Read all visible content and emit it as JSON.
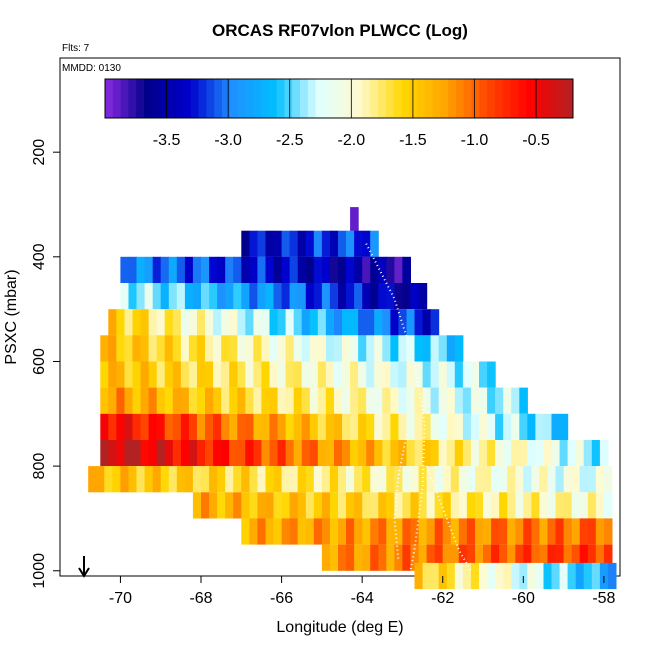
{
  "chart_data": {
    "type": "heatmap",
    "title": "ORCAS RF07vlon PLWCC (Log)",
    "subtitle_flts": "Flts: 7",
    "subtitle_mmdd": "MMDD: 0130",
    "xlabel": "Longitude (deg E)",
    "ylabel": "PSXC (mbar)",
    "xlim": [
      -71.5,
      -57.6
    ],
    "ylim": [
      1010,
      20
    ],
    "y_reversed": true,
    "x_ticks": [
      -70,
      -68,
      -66,
      -64,
      -62,
      -60,
      -58
    ],
    "x_tick_labels": [
      "-70",
      "-68",
      "-66",
      "-64",
      "-62",
      "-60",
      "-58"
    ],
    "y_ticks": [
      200,
      400,
      600,
      800,
      1000
    ],
    "y_tick_labels": [
      "200",
      "400",
      "600",
      "800",
      "1000"
    ],
    "colorbar": {
      "range": [
        -4.0,
        -0.2
      ],
      "ticks": [
        -3.5,
        -3.0,
        -2.5,
        -2.0,
        -1.5,
        -1.0,
        -0.5
      ],
      "tick_labels": [
        "-3.5",
        "-3.0",
        "-2.5",
        "-2.0",
        "-1.5",
        "-1.0",
        "-0.5"
      ],
      "colors": [
        "#8a2be2",
        "#00008b",
        "#0000cd",
        "#1e90ff",
        "#00bfff",
        "#e0ffff",
        "#fffacd",
        "#ffd700",
        "#ffa500",
        "#ff4500",
        "#ff0000",
        "#b22222"
      ]
    },
    "rows": [
      {
        "p": 330,
        "x0": -64.3,
        "x1": -64.05,
        "v0": -3.9,
        "v1": -3.9
      },
      {
        "p": 375,
        "x0": -67.0,
        "x1": -63.6,
        "v0": -3.4,
        "v1": -3.1
      },
      {
        "p": 425,
        "x0": -70.0,
        "x1": -62.7,
        "v0": -2.9,
        "v1": -3.7
      },
      {
        "p": 475,
        "x0": -70.0,
        "x1": -62.4,
        "v0": -2.3,
        "v1": -3.6
      },
      {
        "p": 525,
        "x0": -70.3,
        "x1": -62.0,
        "v0": -1.5,
        "v1": -3.3
      },
      {
        "p": 575,
        "x0": -70.5,
        "x1": -61.5,
        "v0": -1.4,
        "v1": -2.6
      },
      {
        "p": 625,
        "x0": -70.5,
        "x1": -60.8,
        "v0": -1.4,
        "v1": -2.4
      },
      {
        "p": 675,
        "x0": -70.5,
        "x1": -60.0,
        "v0": -1.2,
        "v1": -2.4
      },
      {
        "p": 725,
        "x0": -70.5,
        "x1": -59.0,
        "v0": -0.5,
        "v1": -2.6
      },
      {
        "p": 775,
        "x0": -70.5,
        "x1": -58.0,
        "v0": -0.2,
        "v1": -2.4
      },
      {
        "p": 825,
        "x0": -70.8,
        "x1": -57.8,
        "v0": -1.4,
        "v1": -2.2
      },
      {
        "p": 875,
        "x0": -68.2,
        "x1": -57.8,
        "v0": -1.3,
        "v1": -2.0
      },
      {
        "p": 925,
        "x0": -67.0,
        "x1": -57.8,
        "v0": -1.3,
        "v1": -1.0
      },
      {
        "p": 975,
        "x0": -65.0,
        "x1": -57.8,
        "v0": -1.2,
        "v1": -0.8
      },
      {
        "p": 1010,
        "x0": -62.7,
        "x1": -57.8,
        "v0": -1.5,
        "v1": -2.8
      }
    ]
  }
}
